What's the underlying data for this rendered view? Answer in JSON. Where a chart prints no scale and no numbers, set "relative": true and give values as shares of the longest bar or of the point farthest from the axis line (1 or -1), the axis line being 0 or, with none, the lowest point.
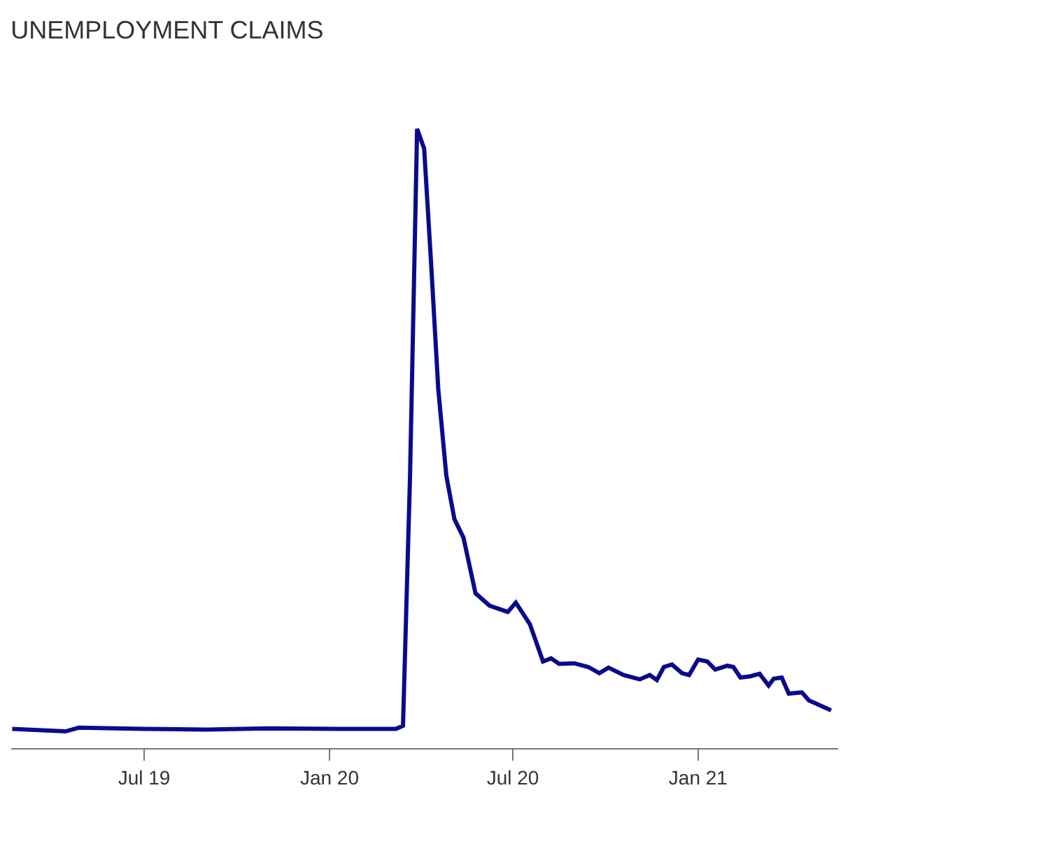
{
  "chart_data": {
    "type": "line",
    "title": "UNEMPLOYMENT CLAIMS",
    "relative": true,
    "grid": false,
    "marker": "none",
    "line_style": "solid",
    "xlim": [
      "2019-02-19",
      "2021-05-20"
    ],
    "xticks": [
      {
        "value": "2019-07-01",
        "label": "Jul 19"
      },
      {
        "value": "2020-01-01",
        "label": "Jan 20"
      },
      {
        "value": "2020-07-01",
        "label": "Jul 20"
      },
      {
        "value": "2021-01-01",
        "label": "Jan 21"
      }
    ],
    "series": [
      {
        "color": "#0a0a8c",
        "x": [
          "2019-02-20",
          "2019-04-14",
          "2019-04-27",
          "2019-07-01",
          "2019-09-01",
          "2019-11-01",
          "2020-01-10",
          "2020-03-07",
          "2020-03-14",
          "2020-03-21",
          "2020-03-28",
          "2020-04-04",
          "2020-04-11",
          "2020-04-18",
          "2020-04-26",
          "2020-05-04",
          "2020-05-13",
          "2020-05-25",
          "2020-06-08",
          "2020-06-26",
          "2020-07-04",
          "2020-07-18",
          "2020-07-31",
          "2020-08-08",
          "2020-08-16",
          "2020-08-31",
          "2020-09-14",
          "2020-09-25",
          "2020-10-04",
          "2020-10-19",
          "2020-11-04",
          "2020-11-14",
          "2020-11-21",
          "2020-11-28",
          "2020-12-06",
          "2020-12-16",
          "2020-12-23",
          "2021-01-01",
          "2021-01-10",
          "2021-01-18",
          "2021-01-30",
          "2021-02-05",
          "2021-02-12",
          "2021-02-22",
          "2021-03-03",
          "2021-03-12",
          "2021-03-17",
          "2021-03-25",
          "2021-04-01",
          "2021-04-14",
          "2021-04-21",
          "2021-05-13"
        ],
        "values": [
          0.031,
          0.027,
          0.033,
          0.031,
          0.03,
          0.032,
          0.031,
          0.031,
          0.036,
          0.44,
          1,
          0.968,
          0.78,
          0.58,
          0.44,
          0.37,
          0.34,
          0.25,
          0.23,
          0.22,
          0.235,
          0.2,
          0.14,
          0.145,
          0.136,
          0.137,
          0.131,
          0.121,
          0.13,
          0.118,
          0.111,
          0.118,
          0.11,
          0.131,
          0.135,
          0.121,
          0.118,
          0.143,
          0.14,
          0.127,
          0.133,
          0.131,
          0.114,
          0.116,
          0.12,
          0.101,
          0.112,
          0.114,
          0.088,
          0.09,
          0.077,
          0.061
        ]
      }
    ]
  }
}
